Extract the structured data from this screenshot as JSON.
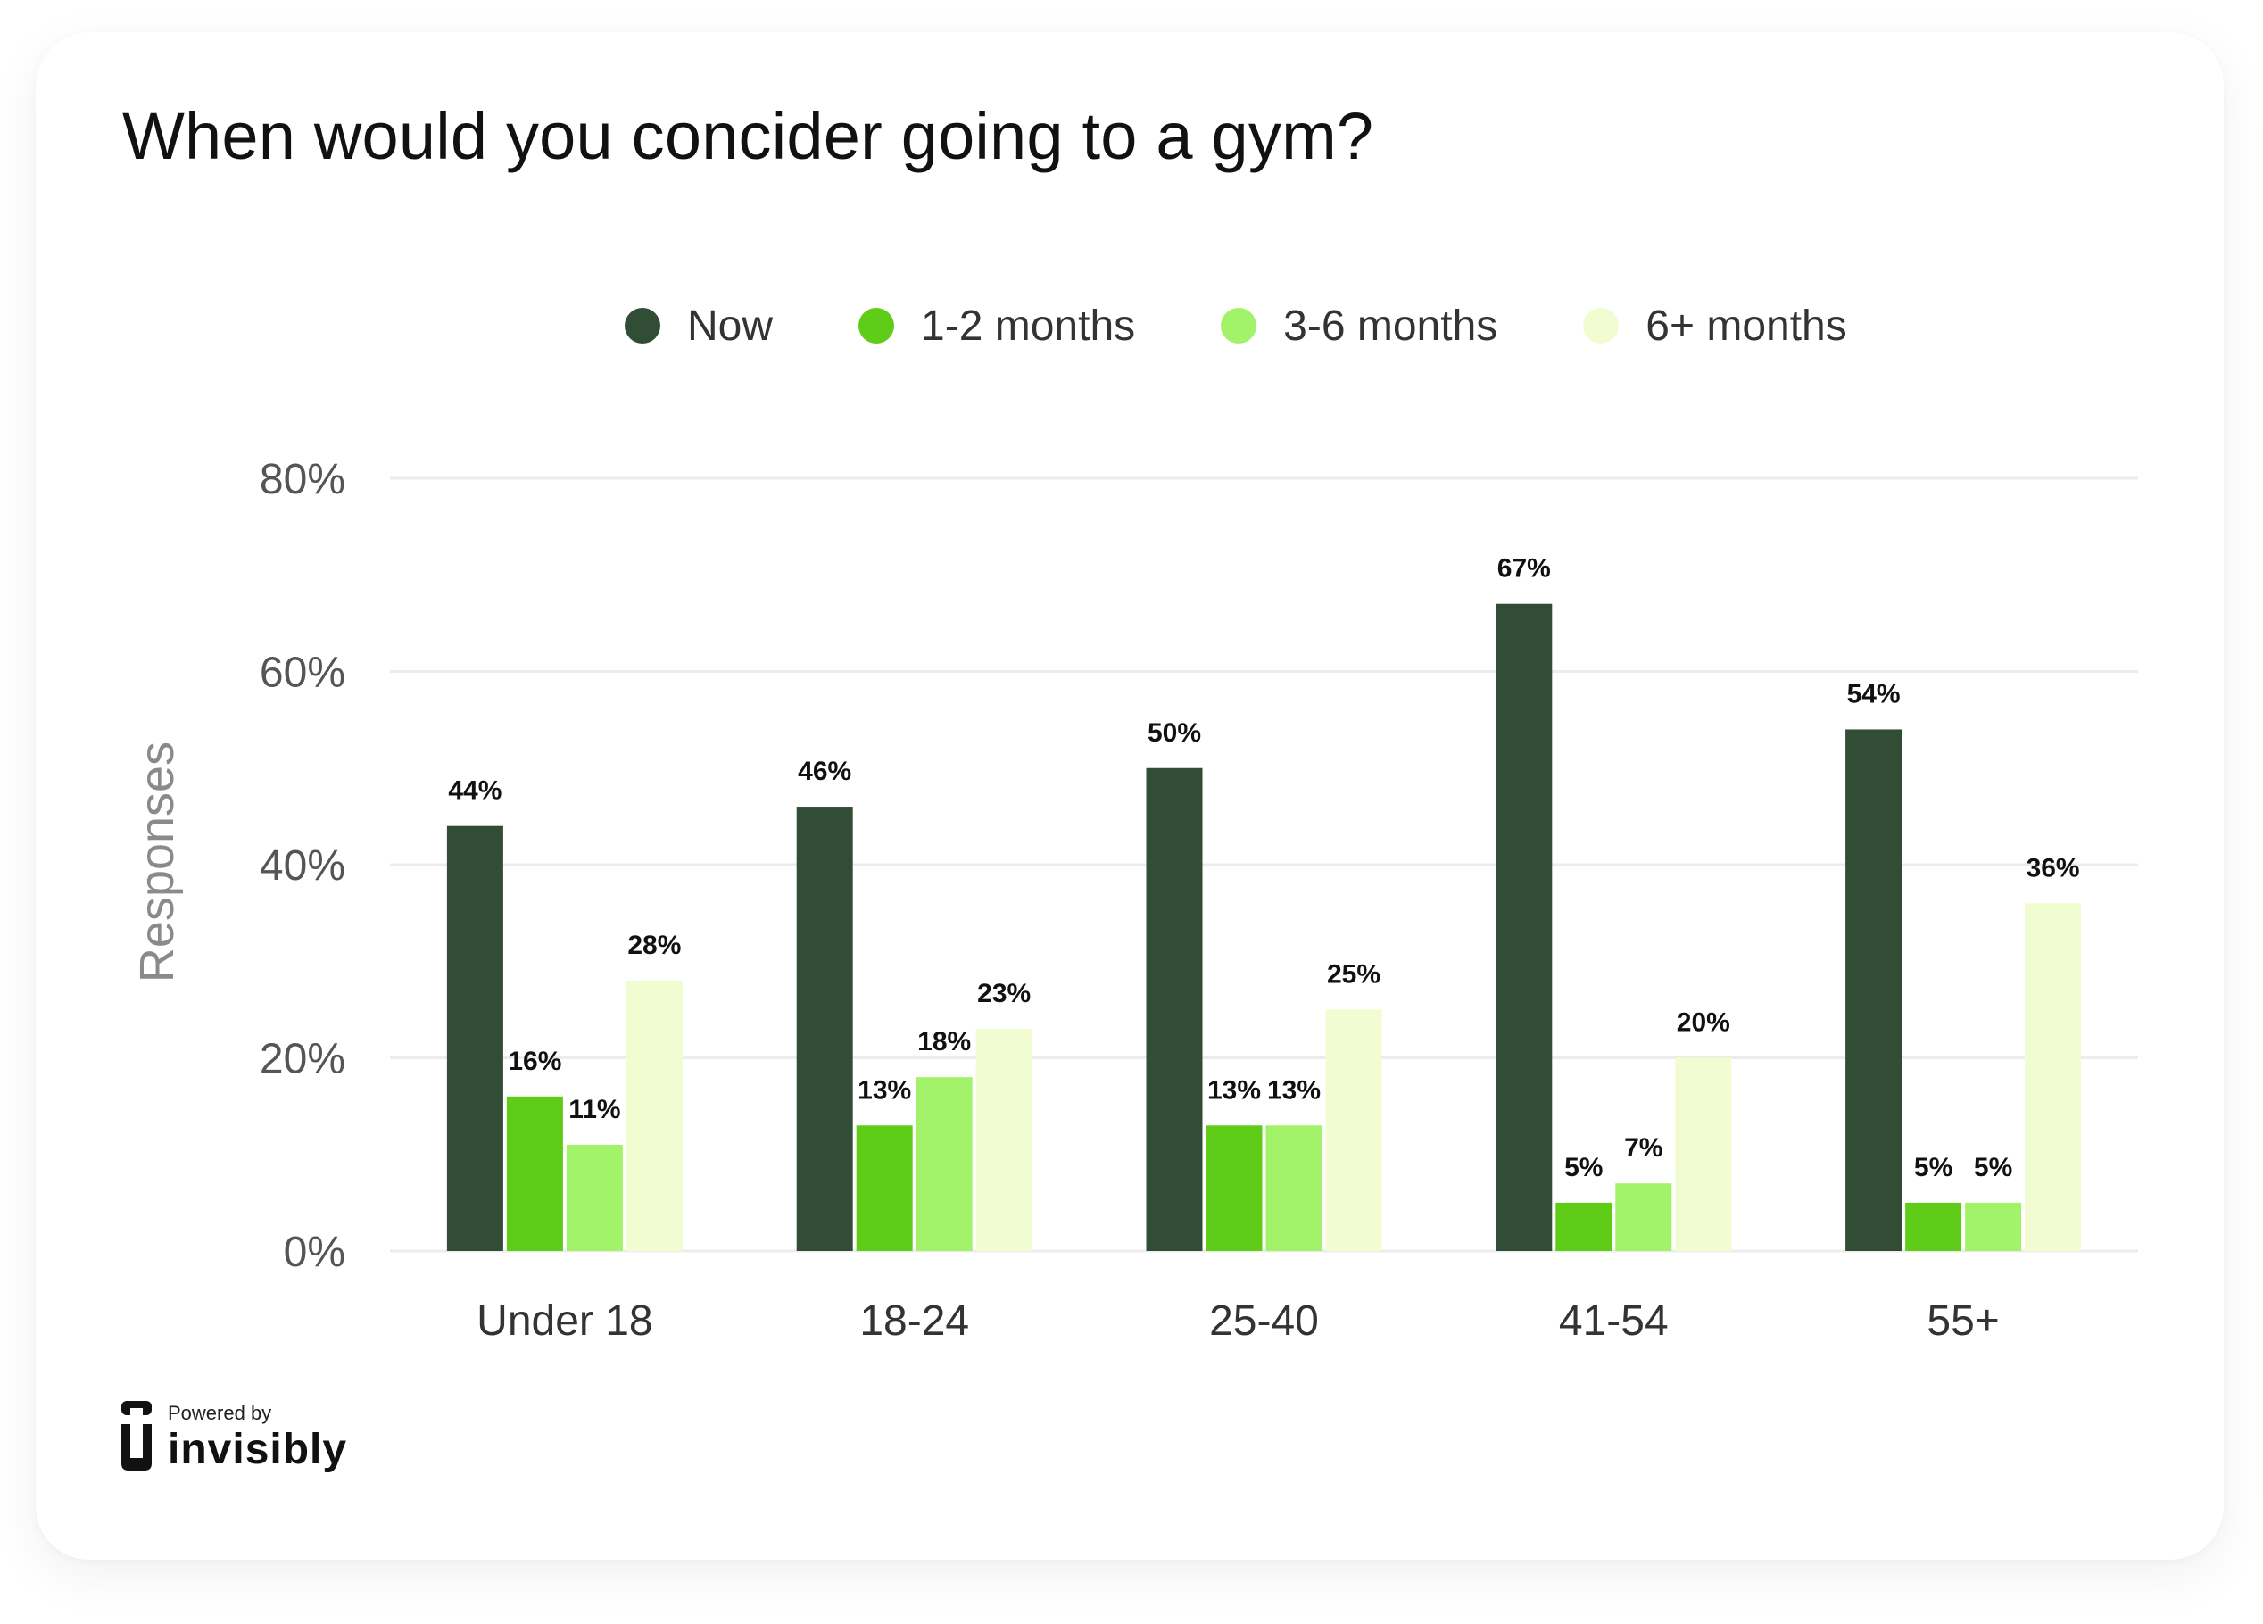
{
  "chart_data": {
    "type": "bar",
    "title": "When would you concider going to a gym?",
    "xlabel": "",
    "ylabel": "Responses",
    "ylim": [
      0,
      80
    ],
    "yticks": [
      "0%",
      "20%",
      "40%",
      "60%",
      "80%"
    ],
    "categories": [
      "Under 18",
      "18-24",
      "25-40",
      "41-54",
      "55+"
    ],
    "series": [
      {
        "name": "Now",
        "color": "#314d36",
        "values": [
          44,
          46,
          50,
          67,
          54
        ],
        "labels": [
          "44%",
          "46%",
          "50%",
          "67%",
          "54%"
        ]
      },
      {
        "name": "1-2 months",
        "color": "#5fcc17",
        "values": [
          16,
          13,
          13,
          5,
          5
        ],
        "labels": [
          "16%",
          "13%",
          "13%",
          "5%",
          "5%"
        ]
      },
      {
        "name": "3-6 months",
        "color": "#a3f36a",
        "values": [
          11,
          18,
          13,
          7,
          5
        ],
        "labels": [
          "11%",
          "18%",
          "13%",
          "7%",
          "5%"
        ]
      },
      {
        "name": "6+ months",
        "color": "#f1fdd0",
        "values": [
          28,
          23,
          25,
          20,
          36
        ],
        "labels": [
          "28%",
          "23%",
          "25%",
          "20%",
          "36%"
        ]
      }
    ],
    "legend_position": "top-center",
    "grid": true
  },
  "footer": {
    "powered_by": "Powered by",
    "brand": "invisibly",
    "logo_icon": "invisibly-logo-icon"
  }
}
